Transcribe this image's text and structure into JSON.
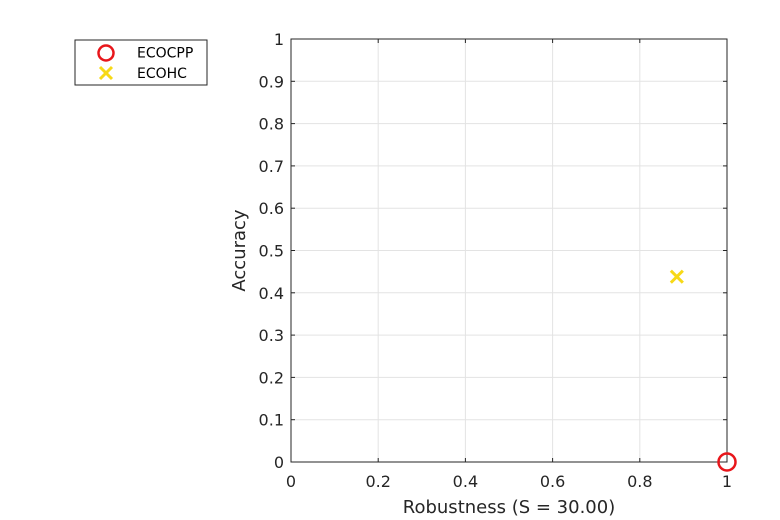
{
  "chart_data": {
    "type": "scatter",
    "xlabel": "Robustness (S = 30.00)",
    "ylabel": "Accuracy",
    "xlim": [
      0,
      1
    ],
    "ylim": [
      0,
      1
    ],
    "x_ticks": [
      0,
      0.2,
      0.4,
      0.6,
      0.8,
      1
    ],
    "x_tick_labels": [
      "0",
      "0.2",
      "0.4",
      "0.6",
      "0.8",
      "1"
    ],
    "y_ticks": [
      0,
      0.1,
      0.2,
      0.3,
      0.4,
      0.5,
      0.6,
      0.7,
      0.8,
      0.9,
      1
    ],
    "y_tick_labels": [
      "0",
      "0.1",
      "0.2",
      "0.3",
      "0.4",
      "0.5",
      "0.6",
      "0.7",
      "0.8",
      "0.9",
      "1"
    ],
    "grid": true,
    "legend_position": "outside-top-left",
    "series": [
      {
        "name": "ECOCPP",
        "marker": "circle",
        "color": "#e8161b",
        "points": [
          {
            "x": 1.0,
            "y": 0.0
          }
        ]
      },
      {
        "name": "ECOHC",
        "marker": "x",
        "color": "#f7d917",
        "points": [
          {
            "x": 0.885,
            "y": 0.438
          }
        ]
      }
    ]
  }
}
